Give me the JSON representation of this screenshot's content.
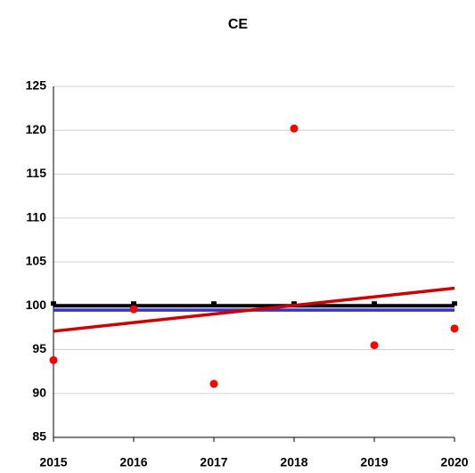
{
  "chart_data": {
    "type": "scatter",
    "title": "CE",
    "x": [
      2015,
      2016,
      2017,
      2018,
      2019,
      2020
    ],
    "series": [
      {
        "type": "line",
        "color": "#3333cc",
        "values": [
          99.5,
          99.5,
          99.5,
          99.5,
          99.5,
          99.5
        ]
      },
      {
        "type": "line",
        "color": "#000000",
        "markers": true,
        "values": [
          100,
          100,
          100,
          100,
          100,
          100
        ]
      },
      {
        "type": "line",
        "color": "#d00000",
        "values": [
          97.1,
          98.08,
          99.06,
          100.04,
          101.02,
          102.0
        ]
      },
      {
        "type": "scatter",
        "color": "#ff0000",
        "values": [
          93.8,
          99.6,
          91.1,
          120.2,
          95.5,
          97.4
        ]
      }
    ],
    "xlim": [
      2015,
      2020
    ],
    "xticks": [
      2015,
      2016,
      2017,
      2018,
      2019,
      2020
    ],
    "ylim": [
      85,
      125
    ],
    "yticks": [
      85,
      90,
      95,
      100,
      105,
      110,
      115,
      120,
      125
    ],
    "grid": true
  }
}
